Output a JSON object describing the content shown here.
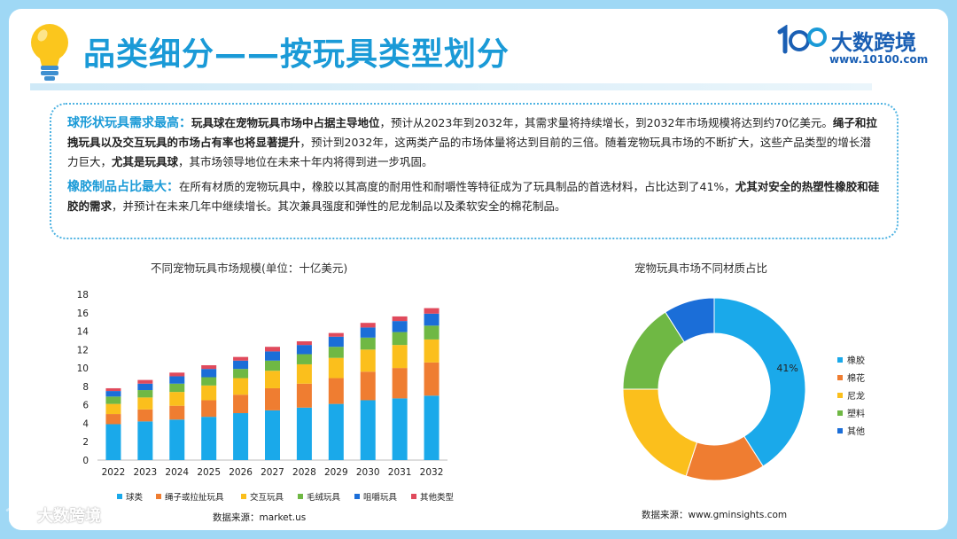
{
  "header": {
    "title": "品类细分——按玩具类型划分",
    "logo_name": "大数跨境",
    "logo_url": "www.10100.com"
  },
  "summary": {
    "para1": {
      "heading": "球形状玩具需求最高：",
      "bold1": "玩具球在宠物玩具市场中占据主导地位",
      "text1": "，预计从2023年到2032年，其需求量将持续增长，到2032年市场规模将达到约70亿美元。",
      "bold2": "绳子和拉拽玩具以及交互玩具的市场占有率也将显著提升",
      "text2": "，预计到2032年，这两类产品的市场体量将达到目前的三倍。随着宠物玩具市场的不断扩大，这些产品类型的增长潜力巨大，",
      "bold3": "尤其是玩具球",
      "text3": "，其市场领导地位在未来十年内将得到进一步巩固。"
    },
    "para2": {
      "heading": "橡胶制品占比最大：",
      "text1": "在所有材质的宠物玩具中，橡胶以其高度的耐用性和耐嚼性等特征成为了玩具制品的首选材料，占比达到了41%，",
      "bold1": "尤其对安全的热塑性橡胶和硅胶的需求",
      "text2": "，并预计在未来几年中继续增长。其次兼具强度和弹性的尼龙制品以及柔软安全的棉花制品。"
    }
  },
  "bar_source": "数据来源：market.us",
  "pie_source": "数据来源：www.gminsights.com",
  "watermark": "大数跨境",
  "chart_data": [
    {
      "type": "bar",
      "stacked": true,
      "title": "不同宠物玩具市场规模(单位：十亿美元)",
      "categories": [
        "2022",
        "2023",
        "2024",
        "2025",
        "2026",
        "2027",
        "2028",
        "2029",
        "2030",
        "2031",
        "2032"
      ],
      "ylim": [
        0,
        18
      ],
      "yticks": [
        0,
        2,
        4,
        6,
        8,
        10,
        12,
        14,
        16,
        18
      ],
      "grid": false,
      "legend": "bottom",
      "series": [
        {
          "name": "球类",
          "color": "#1aa9ea",
          "values": [
            3.9,
            4.2,
            4.4,
            4.7,
            5.1,
            5.4,
            5.7,
            6.1,
            6.5,
            6.7,
            7.0
          ]
        },
        {
          "name": "绳子或拉扯玩具",
          "color": "#ef7d31",
          "values": [
            1.1,
            1.3,
            1.5,
            1.8,
            2.0,
            2.4,
            2.6,
            2.8,
            3.1,
            3.3,
            3.6
          ]
        },
        {
          "name": "交互玩具",
          "color": "#fbbf1c",
          "values": [
            1.1,
            1.3,
            1.5,
            1.6,
            1.8,
            1.9,
            2.1,
            2.2,
            2.4,
            2.5,
            2.5
          ]
        },
        {
          "name": "毛绒玩具",
          "color": "#6fb844",
          "values": [
            0.8,
            0.8,
            0.9,
            0.9,
            1.0,
            1.1,
            1.1,
            1.2,
            1.3,
            1.4,
            1.5
          ]
        },
        {
          "name": "咀嚼玩具",
          "color": "#1b6ed8",
          "values": [
            0.6,
            0.7,
            0.8,
            0.9,
            0.9,
            1.0,
            1.0,
            1.1,
            1.1,
            1.2,
            1.3
          ]
        },
        {
          "name": "其他类型",
          "color": "#e04a5c",
          "values": [
            0.3,
            0.4,
            0.4,
            0.4,
            0.4,
            0.5,
            0.4,
            0.4,
            0.5,
            0.5,
            0.6
          ]
        }
      ]
    },
    {
      "type": "pie",
      "donut": true,
      "title": "宠物玩具市场不同材质占比",
      "legend": "right",
      "slices": [
        {
          "name": "橡胶",
          "value": 41,
          "label": "41%",
          "color": "#1aa9ea"
        },
        {
          "name": "棉花",
          "value": 14,
          "label": "",
          "color": "#ef7d31"
        },
        {
          "name": "尼龙",
          "value": 20,
          "label": "",
          "color": "#fbbf1c"
        },
        {
          "name": "塑料",
          "value": 16,
          "label": "",
          "color": "#6fb844"
        },
        {
          "name": "其他",
          "value": 9,
          "label": "",
          "color": "#1b6ed8"
        }
      ]
    }
  ]
}
